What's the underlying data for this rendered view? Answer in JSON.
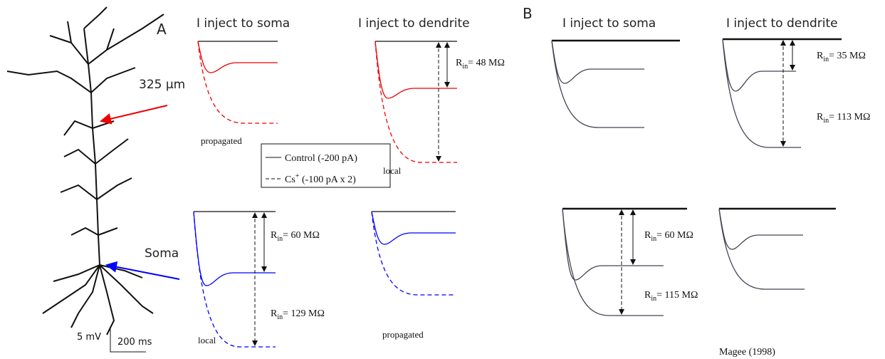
{
  "panel_a": {
    "label": "A",
    "columns": [
      "I inject to soma",
      "I inject to dendrite"
    ],
    "neuron": {
      "dendrite_site": "325 µm",
      "soma_site": "Soma"
    },
    "scale_bar": {
      "voltage": "5 mV",
      "time": "200 ms"
    },
    "trace_labels": [
      "propagated",
      "local",
      "local",
      "propagated"
    ],
    "legend": {
      "control": "Control (-200 pA)",
      "cs": {
        "symbol": "Cs",
        "sup": "+",
        "text": " (-100 pA x 2)"
      }
    },
    "resistances": [
      {
        "symbol": "R",
        "sub": "in",
        "text": "= 48 MΩ"
      },
      {
        "symbol": "R",
        "sub": "in",
        "text": "= 60 MΩ"
      },
      {
        "symbol": "R",
        "sub": "in",
        "text": "= 129 MΩ"
      }
    ]
  },
  "panel_b": {
    "label": "B",
    "columns": [
      "I inject to soma",
      "I inject to dendrite"
    ],
    "resistances": [
      {
        "symbol": "R",
        "sub": "in",
        "text": "= 35 MΩ"
      },
      {
        "symbol": "R",
        "sub": "in",
        "text": "= 113 MΩ"
      },
      {
        "symbol": "R",
        "sub": "in",
        "text": "= 60 MΩ"
      },
      {
        "symbol": "R",
        "sub": "in",
        "text": "= 115 MΩ"
      }
    ],
    "citation": "Magee (1998)"
  }
}
